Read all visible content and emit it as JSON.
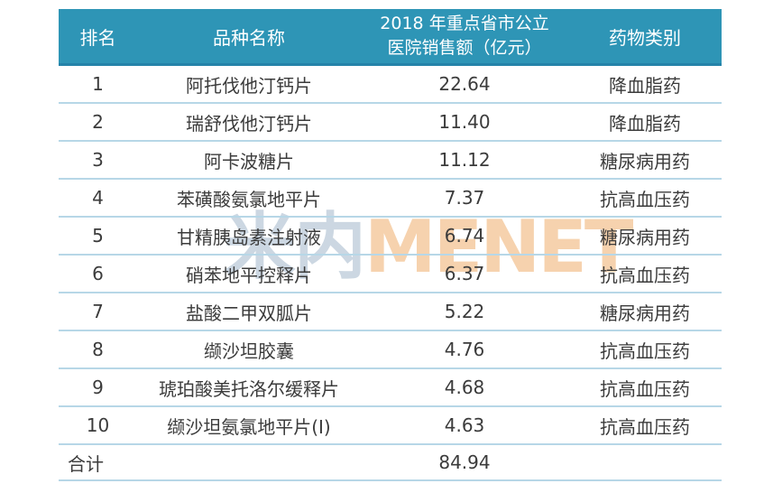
{
  "colors": {
    "header_bg": "#2e95b6",
    "header_text": "#ffffff",
    "row_text": "#3b3b3b",
    "divider": "#b7d7e7",
    "watermark_cn_color": "#ccd7e2",
    "watermark_en_color": "#f6d2ae"
  },
  "watermark": {
    "cn": "米内",
    "en": "MENET"
  },
  "table": {
    "header": {
      "rank": "排名",
      "name": "品种名称",
      "sales_line1": "2018 年重点省市公立",
      "sales_line2": "医院销售额（亿元）",
      "category": "药物类别"
    },
    "rows": [
      {
        "rank": "1",
        "name": "阿托伐他汀钙片",
        "sales": "22.64",
        "category": "降血脂药"
      },
      {
        "rank": "2",
        "name": "瑞舒伐他汀钙片",
        "sales": "11.40",
        "category": "降血脂药"
      },
      {
        "rank": "3",
        "name": "阿卡波糖片",
        "sales": "11.12",
        "category": "糖尿病用药"
      },
      {
        "rank": "4",
        "name": "苯磺酸氨氯地平片",
        "sales": "7.37",
        "category": "抗高血压药"
      },
      {
        "rank": "5",
        "name": "甘精胰岛素注射液",
        "sales": "6.74",
        "category": "糖尿病用药"
      },
      {
        "rank": "6",
        "name": "硝苯地平控释片",
        "sales": "6.37",
        "category": "抗高血压药"
      },
      {
        "rank": "7",
        "name": "盐酸二甲双胍片",
        "sales": "5.22",
        "category": "糖尿病用药"
      },
      {
        "rank": "8",
        "name": "缬沙坦胶囊",
        "sales": "4.76",
        "category": "抗高血压药"
      },
      {
        "rank": "9",
        "name": "琥珀酸美托洛尔缓释片",
        "sales": "4.68",
        "category": "抗高血压药"
      },
      {
        "rank": "10",
        "name": "缬沙坦氨氯地平片(Ⅰ)",
        "sales": "4.63",
        "category": "抗高血压药"
      }
    ],
    "total": {
      "label": "合计",
      "sales": "84.94"
    }
  },
  "chart_data": {
    "type": "table",
    "title": "",
    "columns": [
      "排名",
      "品种名称",
      "2018 年重点省市公立医院销售额（亿元）",
      "药物类别"
    ],
    "rows": [
      [
        "1",
        "阿托伐他汀钙片",
        22.64,
        "降血脂药"
      ],
      [
        "2",
        "瑞舒伐他汀钙片",
        11.4,
        "降血脂药"
      ],
      [
        "3",
        "阿卡波糖片",
        11.12,
        "糖尿病用药"
      ],
      [
        "4",
        "苯磺酸氨氯地平片",
        7.37,
        "抗高血压药"
      ],
      [
        "5",
        "甘精胰岛素注射液",
        6.74,
        "糖尿病用药"
      ],
      [
        "6",
        "硝苯地平控释片",
        6.37,
        "抗高血压药"
      ],
      [
        "7",
        "盐酸二甲双胍片",
        5.22,
        "糖尿病用药"
      ],
      [
        "8",
        "缬沙坦胶囊",
        4.76,
        "抗高血压药"
      ],
      [
        "9",
        "琥珀酸美托洛尔缓释片",
        4.68,
        "抗高血压药"
      ],
      [
        "10",
        "缬沙坦氨氯地平片(Ⅰ)",
        4.63,
        "抗高血压药"
      ],
      [
        "合计",
        "",
        84.94,
        ""
      ]
    ]
  }
}
